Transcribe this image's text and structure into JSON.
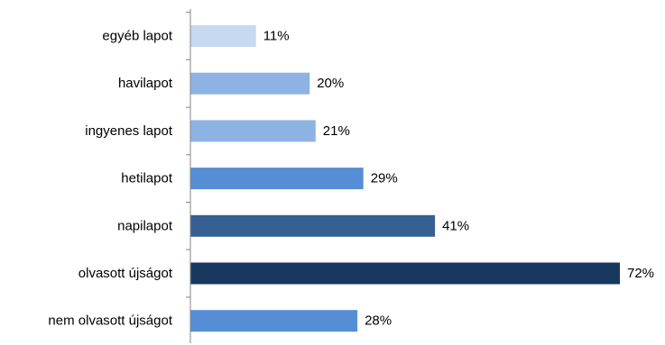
{
  "chart_data": {
    "type": "bar",
    "orientation": "horizontal",
    "categories": [
      "egyéb lapot",
      "havilapot",
      "ingyenes lapot",
      "hetilapot",
      "napilapot",
      "olvasott újságot",
      "nem olvasott újságot"
    ],
    "values": [
      11,
      20,
      21,
      29,
      41,
      72,
      28
    ],
    "value_labels": [
      "11%",
      "20%",
      "21%",
      "29%",
      "41%",
      "72%",
      "28%"
    ],
    "unit": "%",
    "xlim": [
      0,
      72
    ],
    "grid": false,
    "legend": "none",
    "bar_colors": [
      "#c6d9f1",
      "#8db3e2",
      "#8db3e2",
      "#558ed5",
      "#376092",
      "#17375e",
      "#558ed5"
    ],
    "axis_color": "#868686"
  }
}
